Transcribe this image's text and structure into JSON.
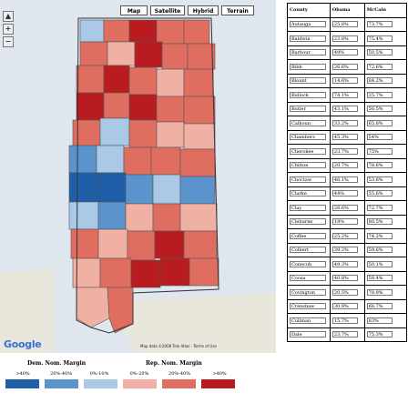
{
  "map": {
    "types": [
      {
        "label": "Map",
        "active": true
      },
      {
        "label": "Satellite",
        "active": false
      },
      {
        "label": "Hybrid",
        "active": false
      },
      {
        "label": "Terrain",
        "active": false
      }
    ],
    "google_label": "Google",
    "copyright": "Map data ©2008 Tele Atlas · Terms of Use"
  },
  "legend": {
    "dem_title": "Dem. Nom. Margin",
    "rep_title": "Rep. Nom. Margin",
    "ranges": [
      ">40%",
      "20%-40%",
      "0%-10%",
      "0%-20%",
      "20%-40%",
      ">40%"
    ],
    "colors": [
      "#1f5fa8",
      "#5b93cc",
      "#a9c9e6",
      "#f0b0a4",
      "#e06e60",
      "#b81c20"
    ]
  },
  "table": {
    "headers": [
      "County",
      "Obama",
      "McCain"
    ],
    "rows": [
      [
        "Autauga",
        "25.8%",
        "73.7%"
      ],
      [
        "Baldwin",
        "23.8%",
        "75.4%"
      ],
      [
        "Barbour",
        "49%",
        "50.5%"
      ],
      [
        "Bibb",
        "26.6%",
        "72.6%"
      ],
      [
        "Blount",
        "14.6%",
        "84.2%"
      ],
      [
        "Bullock",
        "74.1%",
        "25.7%"
      ],
      [
        "Butler",
        "43.1%",
        "56.5%"
      ],
      [
        "Calhoun",
        "33.2%",
        "65.8%"
      ],
      [
        "Chambers",
        "45.3%",
        "54%"
      ],
      [
        "Cherokee",
        "23.7%",
        "75%"
      ],
      [
        "Chilton",
        "20.7%",
        "78.6%"
      ],
      [
        "Choctaw",
        "46.1%",
        "53.6%"
      ],
      [
        "Clarke",
        "44%",
        "55.6%"
      ],
      [
        "Clay",
        "26.6%",
        "72.7%"
      ],
      [
        "Cleburne",
        "18%",
        "80.5%"
      ],
      [
        "Coffee",
        "25.2%",
        "74.2%"
      ],
      [
        "Colbert",
        "39.2%",
        "59.6%"
      ],
      [
        "Conecuh",
        "49.3%",
        "50.1%"
      ],
      [
        "Coosa",
        "40.8%",
        "58.4%"
      ],
      [
        "Covington",
        "20.5%",
        "78.9%"
      ],
      [
        "Crenshaw",
        "30.9%",
        "68.7%"
      ],
      [
        "Cullman",
        "15.7%",
        "83%"
      ],
      [
        "Dale",
        "23.7%",
        "75.3%"
      ]
    ]
  }
}
